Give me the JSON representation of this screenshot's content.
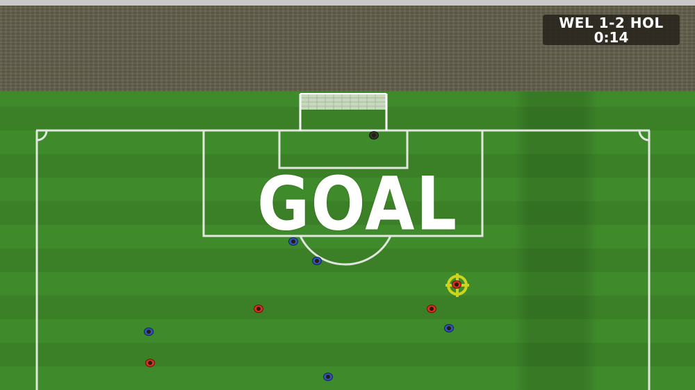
{
  "scoreboard": {
    "score": "WEL 1-2 HOL",
    "clock": "0:14"
  },
  "banner": {
    "text": "GOAL"
  },
  "colors": {
    "pitch": "#3f8a2a",
    "stands": "#635f4c",
    "home_team": "#d8321e",
    "away_team": "#2e56b5",
    "selection_marker": "#e6e21c"
  }
}
